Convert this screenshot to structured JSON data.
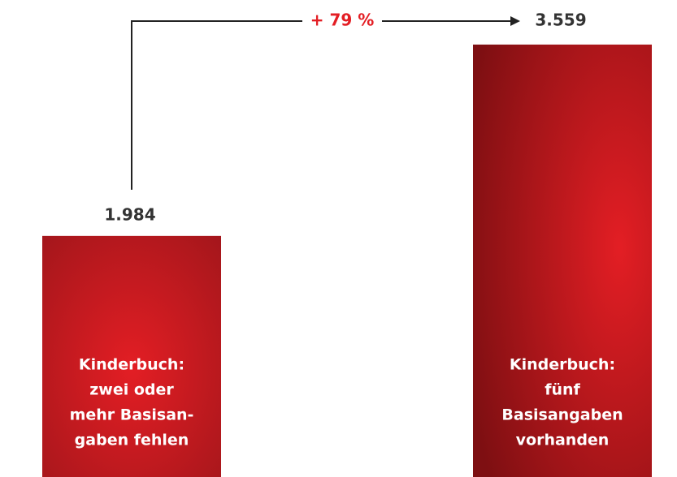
{
  "chart_data": {
    "type": "bar",
    "categories": [
      [
        "Kinderbuch:",
        "zwei oder",
        "mehr Basisan-",
        "gaben fehlen"
      ],
      [
        "Kinderbuch:",
        "fünf",
        "Basisangaben",
        "vorhanden"
      ]
    ],
    "values": [
      1984,
      3559
    ],
    "value_labels": [
      "1.984",
      "3.559"
    ],
    "annotation": "+ 79 %",
    "color": "#e31e24",
    "ylim": [
      0,
      3600
    ]
  }
}
